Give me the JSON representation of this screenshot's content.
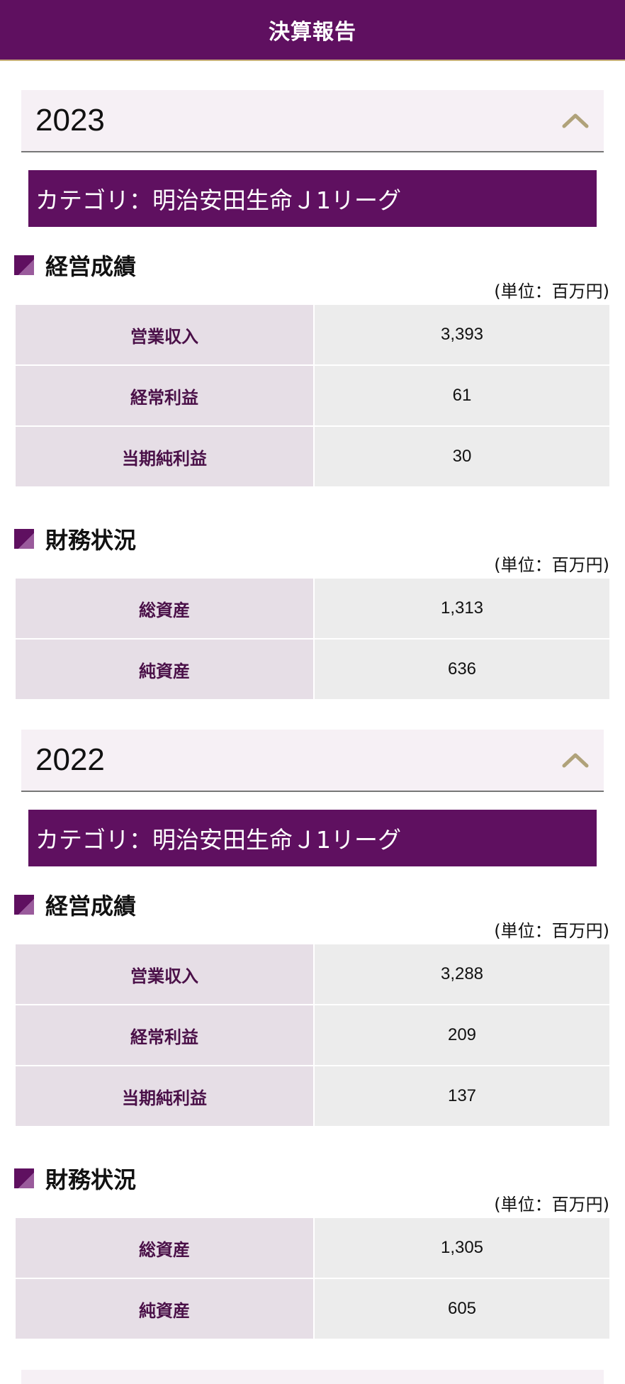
{
  "header": {
    "title": "決算報告"
  },
  "years": [
    {
      "year": "2023",
      "category": "カテゴリ：明治安田生命Ｊ1リーグ",
      "results": {
        "title": "経営成績",
        "unit": "(単位：百万円)",
        "rows": [
          {
            "label": "営業収入",
            "value": "3,393"
          },
          {
            "label": "経常利益",
            "value": "61"
          },
          {
            "label": "当期純利益",
            "value": "30"
          }
        ]
      },
      "finance": {
        "title": "財務状況",
        "unit": "(単位：百万円)",
        "rows": [
          {
            "label": "総資産",
            "value": "1,313"
          },
          {
            "label": "純資産",
            "value": "636"
          }
        ]
      }
    },
    {
      "year": "2022",
      "category": "カテゴリ：明治安田生命Ｊ1リーグ",
      "results": {
        "title": "経営成績",
        "unit": "(単位：百万円)",
        "rows": [
          {
            "label": "営業収入",
            "value": "3,288"
          },
          {
            "label": "経常利益",
            "value": "209"
          },
          {
            "label": "当期純利益",
            "value": "137"
          }
        ]
      },
      "finance": {
        "title": "財務状況",
        "unit": "(単位：百万円)",
        "rows": [
          {
            "label": "総資産",
            "value": "1,305"
          },
          {
            "label": "純資産",
            "value": "605"
          }
        ]
      }
    }
  ],
  "icons": {
    "toggle": "chevron-up-icon",
    "bullet": "square-bullet-icon"
  },
  "colors": {
    "brand": "#5f1060",
    "accent_gold": "#b0a27a"
  }
}
